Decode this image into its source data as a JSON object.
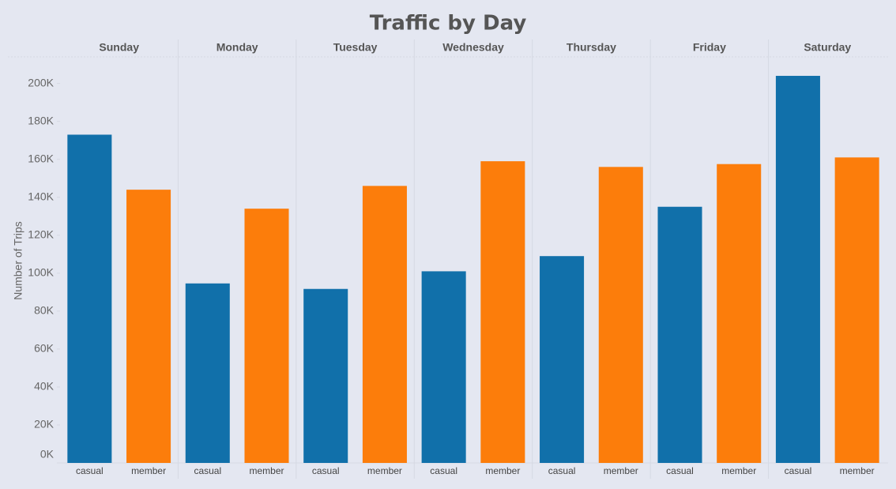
{
  "chart_data": {
    "type": "bar",
    "title": "Traffic by Day",
    "y_label": "Number of Trips",
    "categories": [
      "Sunday",
      "Monday",
      "Tuesday",
      "Wednesday",
      "Thursday",
      "Friday",
      "Saturday"
    ],
    "series": [
      {
        "name": "casual",
        "color": "#1170aa",
        "values": [
          173000,
          94600,
          91700,
          101000,
          109000,
          135000,
          204000
        ]
      },
      {
        "name": "member",
        "color": "#fc7d0b",
        "values": [
          144000,
          134000,
          146000,
          159000,
          156000,
          157500,
          161000
        ]
      }
    ],
    "ylim": [
      0,
      214000
    ],
    "yticks": [
      {
        "value": 0,
        "label": "0K"
      },
      {
        "value": 20000,
        "label": "20K"
      },
      {
        "value": 40000,
        "label": "40K"
      },
      {
        "value": 60000,
        "label": "60K"
      },
      {
        "value": 80000,
        "label": "80K"
      },
      {
        "value": 100000,
        "label": "100K"
      },
      {
        "value": 120000,
        "label": "120K"
      },
      {
        "value": 140000,
        "label": "140K"
      },
      {
        "value": 160000,
        "label": "160K"
      },
      {
        "value": 180000,
        "label": "180K"
      },
      {
        "value": 200000,
        "label": "200K"
      }
    ],
    "grid": false
  }
}
